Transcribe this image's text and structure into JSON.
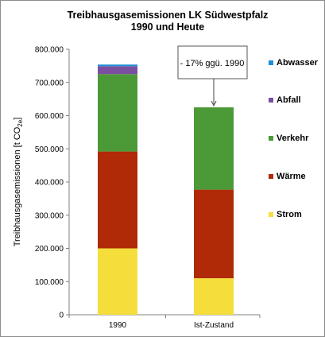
{
  "chart_data": {
    "type": "bar",
    "stacked": true,
    "title": "Treibhausgasemissionen  LK Südwestpfalz",
    "subtitle": "1990 und Heute",
    "ylabel": "Treibhausgasemissionen  [t CO",
    "ylabel_sub": "2e",
    "ylabel_close": "]",
    "categories": [
      "1990",
      "Ist-Zustand"
    ],
    "ylim": [
      0,
      800000
    ],
    "y_ticks": [
      0,
      100000,
      200000,
      300000,
      400000,
      500000,
      600000,
      700000,
      800000
    ],
    "y_tick_labels": [
      "0",
      "100.000",
      "200.000",
      "300.000",
      "400.000",
      "500.000",
      "600.000",
      "700.000",
      "800.000"
    ],
    "grid": false,
    "legend_position": "right",
    "series": [
      {
        "name": "Strom",
        "color": "#f5de3c",
        "values": [
          200000,
          110000
        ]
      },
      {
        "name": "Wärme",
        "color": "#b02a07",
        "values": [
          292000,
          267000
        ]
      },
      {
        "name": "Verkehr",
        "color": "#4c9a37",
        "values": [
          233000,
          248000
        ]
      },
      {
        "name": "Abfall",
        "color": "#7b4fa0",
        "values": [
          24000,
          0
        ]
      },
      {
        "name": "Abwasser",
        "color": "#1f8ed6",
        "values": [
          5000,
          0
        ]
      }
    ],
    "annotation": {
      "text": "- 17% ggü. 1990",
      "target_category": "Ist-Zustand"
    }
  }
}
